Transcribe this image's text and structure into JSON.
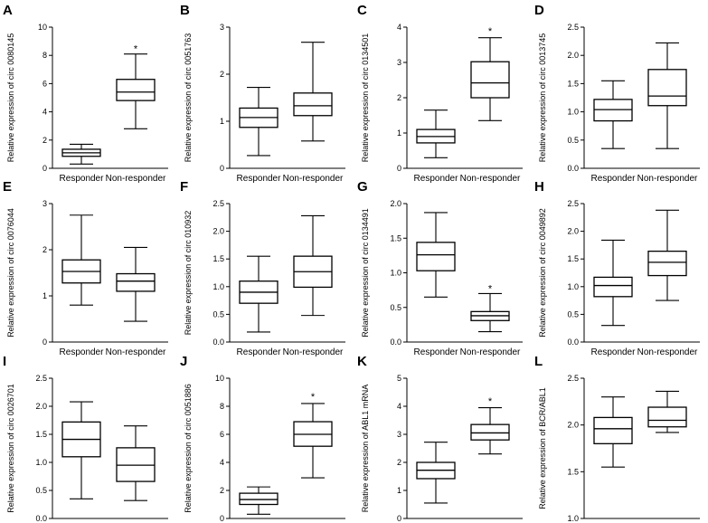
{
  "chart_data": [
    {
      "type": "box",
      "panel_letter": "A",
      "ylabel": "Relative expression of circ 0080145",
      "ylim": [
        0,
        10
      ],
      "yticks": [
        "0",
        "2",
        "4",
        "6",
        "8",
        "10"
      ],
      "categories": [
        "Responder",
        "Non-responder"
      ],
      "boxes": [
        {
          "min": 0.3,
          "q1": 0.85,
          "median": 1.1,
          "q3": 1.35,
          "max": 1.7
        },
        {
          "min": 2.8,
          "q1": 4.8,
          "median": 5.4,
          "q3": 6.3,
          "max": 8.1
        }
      ],
      "annotations": [
        {
          "category": "Non-responder",
          "text": "*",
          "y": 8.5
        }
      ]
    },
    {
      "type": "box",
      "panel_letter": "B",
      "ylabel": "Relative expression of circ 0051763",
      "ylim": [
        0,
        3
      ],
      "yticks": [
        "0",
        "1",
        "2",
        "3"
      ],
      "categories": [
        "Responder",
        "Non-responder"
      ],
      "boxes": [
        {
          "min": 0.27,
          "q1": 0.87,
          "median": 1.08,
          "q3": 1.28,
          "max": 1.72
        },
        {
          "min": 0.58,
          "q1": 1.12,
          "median": 1.33,
          "q3": 1.6,
          "max": 2.68
        }
      ],
      "annotations": []
    },
    {
      "type": "box",
      "panel_letter": "C",
      "ylabel": "Relative expression of circ 0134501",
      "ylim": [
        0,
        4
      ],
      "yticks": [
        "0",
        "1",
        "2",
        "3",
        "4"
      ],
      "categories": [
        "Responder",
        "Non-responder"
      ],
      "boxes": [
        {
          "min": 0.3,
          "q1": 0.72,
          "median": 0.9,
          "q3": 1.1,
          "max": 1.65
        },
        {
          "min": 1.35,
          "q1": 2.0,
          "median": 2.42,
          "q3": 3.02,
          "max": 3.7
        }
      ],
      "annotations": [
        {
          "category": "Non-responder",
          "text": "*",
          "y": 3.9
        }
      ]
    },
    {
      "type": "box",
      "panel_letter": "D",
      "ylabel": "Relative expression of circ 0013745",
      "ylim": [
        0,
        2.5
      ],
      "yticks": [
        "0.0",
        "0.5",
        "1.0",
        "1.5",
        "2.0",
        "2.5"
      ],
      "categories": [
        "Responder",
        "Non-responder"
      ],
      "boxes": [
        {
          "min": 0.35,
          "q1": 0.84,
          "median": 1.04,
          "q3": 1.22,
          "max": 1.55
        },
        {
          "min": 0.35,
          "q1": 1.11,
          "median": 1.28,
          "q3": 1.75,
          "max": 2.22
        }
      ],
      "annotations": []
    },
    {
      "type": "box",
      "panel_letter": "E",
      "ylabel": "Relative expression of circ 0076044",
      "ylim": [
        0,
        3
      ],
      "yticks": [
        "0",
        "1",
        "2",
        "3"
      ],
      "categories": [
        "Responder",
        "Non-responder"
      ],
      "boxes": [
        {
          "min": 0.8,
          "q1": 1.28,
          "median": 1.53,
          "q3": 1.78,
          "max": 2.75
        },
        {
          "min": 0.45,
          "q1": 1.1,
          "median": 1.32,
          "q3": 1.48,
          "max": 2.05
        }
      ],
      "annotations": []
    },
    {
      "type": "box",
      "panel_letter": "F",
      "ylabel": "Relative expression of circ 010932",
      "ylim": [
        0,
        2.5
      ],
      "yticks": [
        "0.0",
        "0.5",
        "1.0",
        "1.5",
        "2.0",
        "2.5"
      ],
      "categories": [
        "Responder",
        "Non-responder"
      ],
      "boxes": [
        {
          "min": 0.18,
          "q1": 0.7,
          "median": 0.9,
          "q3": 1.1,
          "max": 1.55
        },
        {
          "min": 0.48,
          "q1": 0.99,
          "median": 1.27,
          "q3": 1.55,
          "max": 2.28
        }
      ],
      "annotations": []
    },
    {
      "type": "box",
      "panel_letter": "G",
      "ylabel": "Relative expression of circ 0134491",
      "ylim": [
        0,
        2
      ],
      "yticks": [
        "0.0",
        "0.5",
        "1.0",
        "1.5",
        "2.0"
      ],
      "categories": [
        "Responder",
        "Non-responder"
      ],
      "boxes": [
        {
          "min": 0.65,
          "q1": 1.03,
          "median": 1.26,
          "q3": 1.44,
          "max": 1.87
        },
        {
          "min": 0.15,
          "q1": 0.31,
          "median": 0.38,
          "q3": 0.44,
          "max": 0.7
        }
      ],
      "annotations": [
        {
          "category": "Non-responder",
          "text": "*",
          "y": 0.78
        }
      ]
    },
    {
      "type": "box",
      "panel_letter": "H",
      "ylabel": "Relative expression of circ 0049892",
      "ylim": [
        0,
        2.5
      ],
      "yticks": [
        "0.0",
        "0.5",
        "1.0",
        "1.5",
        "2.0",
        "2.5"
      ],
      "categories": [
        "Responder",
        "Non-responder"
      ],
      "boxes": [
        {
          "min": 0.3,
          "q1": 0.82,
          "median": 1.02,
          "q3": 1.17,
          "max": 1.84
        },
        {
          "min": 0.75,
          "q1": 1.2,
          "median": 1.44,
          "q3": 1.64,
          "max": 2.38
        }
      ],
      "annotations": []
    },
    {
      "type": "box",
      "panel_letter": "I",
      "ylabel": "Relative expression of circ 0026701",
      "ylim": [
        0,
        2.5
      ],
      "yticks": [
        "0.0",
        "0.5",
        "1.0",
        "1.5",
        "2.0",
        "2.5"
      ],
      "categories": [
        "Responder",
        "Non-responder"
      ],
      "boxes": [
        {
          "min": 0.35,
          "q1": 1.1,
          "median": 1.41,
          "q3": 1.72,
          "max": 2.08
        },
        {
          "min": 0.32,
          "q1": 0.66,
          "median": 0.95,
          "q3": 1.26,
          "max": 1.65
        }
      ],
      "annotations": []
    },
    {
      "type": "box",
      "panel_letter": "J",
      "ylabel": "Relative expression of circ 0051886",
      "ylim": [
        0,
        10
      ],
      "yticks": [
        "0",
        "2",
        "4",
        "6",
        "8",
        "10"
      ],
      "categories": [
        "Responder",
        "Non-responder"
      ],
      "boxes": [
        {
          "min": 0.3,
          "q1": 1.0,
          "median": 1.35,
          "q3": 1.8,
          "max": 2.25
        },
        {
          "min": 2.9,
          "q1": 5.15,
          "median": 6.0,
          "q3": 6.9,
          "max": 8.2
        }
      ],
      "annotations": [
        {
          "category": "Non-responder",
          "text": "*",
          "y": 8.7
        }
      ]
    },
    {
      "type": "box",
      "panel_letter": "K",
      "ylabel": "Relative expression of ABL1 mRNA",
      "ylim": [
        0,
        5
      ],
      "yticks": [
        "0",
        "1",
        "2",
        "3",
        "4",
        "5"
      ],
      "categories": [
        "Responder",
        "Non-responder"
      ],
      "boxes": [
        {
          "min": 0.55,
          "q1": 1.42,
          "median": 1.72,
          "q3": 2.0,
          "max": 2.72
        },
        {
          "min": 2.3,
          "q1": 2.8,
          "median": 3.05,
          "q3": 3.35,
          "max": 3.95
        }
      ],
      "annotations": [
        {
          "category": "Non-responder",
          "text": "*",
          "y": 4.2
        }
      ]
    },
    {
      "type": "box",
      "panel_letter": "L",
      "ylabel": "Relative expression of BCR/ABL1",
      "ylim": [
        1.0,
        2.5
      ],
      "yticks": [
        "1.0",
        "1.5",
        "2.0",
        "2.5"
      ],
      "categories": [
        "Responder",
        "Non-responder"
      ],
      "boxes": [
        {
          "min": 1.55,
          "q1": 1.8,
          "median": 1.96,
          "q3": 2.08,
          "max": 2.3
        },
        {
          "min": 1.92,
          "q1": 1.98,
          "median": 2.05,
          "q3": 2.19,
          "max": 2.36
        }
      ],
      "annotations": []
    }
  ]
}
